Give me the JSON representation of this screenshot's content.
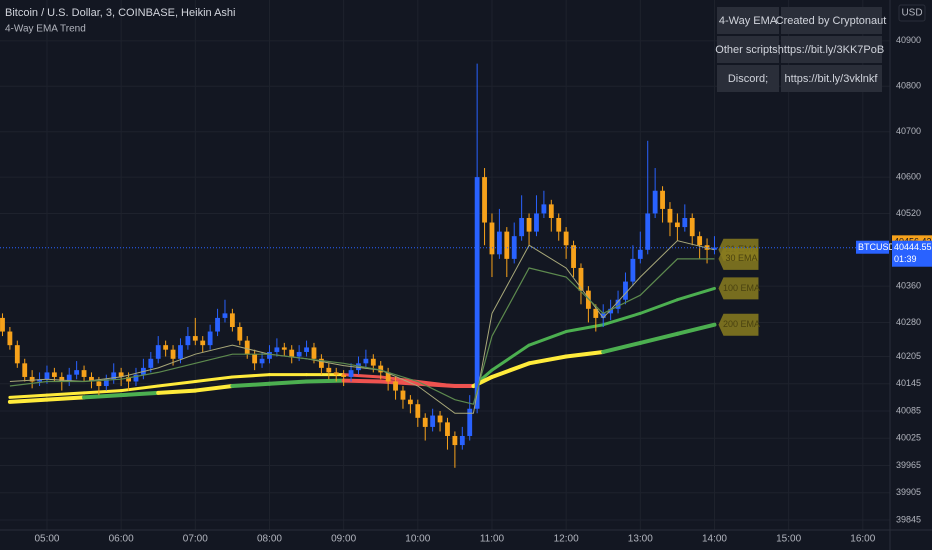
{
  "header": {
    "symbol": "Bitcoin / U.S. Dollar, 3, COINBASE, Heikin Ashi",
    "indicator": "4-Way EMA Trend",
    "currency": "USD"
  },
  "table": {
    "rows": [
      [
        "4-Way EMA",
        "Created by Cryptonaut"
      ],
      [
        "Other scripts;",
        "https://bit.ly/3KK7PoB"
      ],
      [
        "Discord;",
        "https://bit.ly/3vklnkf"
      ]
    ]
  },
  "price_labels": {
    "indicator_price": 40456.42,
    "ticker": "BTCUSD",
    "last_price": 40444.55,
    "countdown": "01:39"
  },
  "chart_data": {
    "type": "candlestick",
    "up_color": "#2962ff",
    "down_color": "#f7a21b",
    "xlim": [
      "04:22",
      "16:22"
    ],
    "ylim": [
      39823,
      40990
    ],
    "xticks": [
      "05:00",
      "06:00",
      "07:00",
      "08:00",
      "09:00",
      "10:00",
      "11:00",
      "12:00",
      "13:00",
      "14:00",
      "15:00",
      "16:00"
    ],
    "yticks": [
      39845,
      39905,
      39965,
      40025,
      40085,
      40145,
      40205,
      40280,
      40360,
      40520,
      40600,
      40700,
      40800,
      40900
    ],
    "grid": true,
    "x": [
      "04:24",
      "04:30",
      "04:36",
      "04:42",
      "04:48",
      "04:54",
      "05:00",
      "05:06",
      "05:12",
      "05:18",
      "05:24",
      "05:30",
      "05:36",
      "05:42",
      "05:48",
      "05:54",
      "06:00",
      "06:06",
      "06:12",
      "06:18",
      "06:24",
      "06:30",
      "06:36",
      "06:42",
      "06:48",
      "06:54",
      "07:00",
      "07:06",
      "07:12",
      "07:18",
      "07:24",
      "07:30",
      "07:36",
      "07:42",
      "07:48",
      "07:54",
      "08:00",
      "08:06",
      "08:12",
      "08:18",
      "08:24",
      "08:30",
      "08:36",
      "08:42",
      "08:48",
      "08:54",
      "09:00",
      "09:06",
      "09:12",
      "09:18",
      "09:24",
      "09:30",
      "09:36",
      "09:42",
      "09:48",
      "09:54",
      "10:00",
      "10:06",
      "10:12",
      "10:18",
      "10:24",
      "10:30",
      "10:36",
      "10:42",
      "10:48",
      "10:54",
      "11:00",
      "11:06",
      "11:12",
      "11:18",
      "11:24",
      "11:30",
      "11:36",
      "11:42",
      "11:48",
      "11:54",
      "12:00",
      "12:06",
      "12:12",
      "12:18",
      "12:24",
      "12:30",
      "12:36",
      "12:42",
      "12:48",
      "12:54",
      "13:00",
      "13:06",
      "13:12",
      "13:18",
      "13:24",
      "13:30",
      "13:36",
      "13:42",
      "13:48",
      "13:54",
      "14:00"
    ],
    "ohlc": [
      [
        40290,
        40300,
        40250,
        40260
      ],
      [
        40260,
        40270,
        40220,
        40230
      ],
      [
        40230,
        40240,
        40180,
        40190
      ],
      [
        40190,
        40200,
        40150,
        40160
      ],
      [
        40160,
        40175,
        40135,
        40150
      ],
      [
        40150,
        40170,
        40140,
        40155
      ],
      [
        40155,
        40185,
        40145,
        40170
      ],
      [
        40170,
        40180,
        40150,
        40160
      ],
      [
        40160,
        40170,
        40130,
        40150
      ],
      [
        40150,
        40180,
        40140,
        40165
      ],
      [
        40165,
        40195,
        40155,
        40175
      ],
      [
        40175,
        40185,
        40150,
        40160
      ],
      [
        40160,
        40170,
        40135,
        40150
      ],
      [
        40150,
        40160,
        40120,
        40140
      ],
      [
        40140,
        40165,
        40130,
        40155
      ],
      [
        40155,
        40190,
        40145,
        40170
      ],
      [
        40170,
        40180,
        40140,
        40160
      ],
      [
        40160,
        40170,
        40130,
        40150
      ],
      [
        40150,
        40180,
        40140,
        40165
      ],
      [
        40165,
        40200,
        40155,
        40180
      ],
      [
        40180,
        40215,
        40170,
        40200
      ],
      [
        40200,
        40250,
        40190,
        40230
      ],
      [
        40230,
        40240,
        40205,
        40220
      ],
      [
        40220,
        40230,
        40185,
        40200
      ],
      [
        40200,
        40245,
        40190,
        40230
      ],
      [
        40230,
        40270,
        40220,
        40250
      ],
      [
        40250,
        40290,
        40230,
        40240
      ],
      [
        40240,
        40250,
        40215,
        40230
      ],
      [
        40230,
        40275,
        40220,
        40260
      ],
      [
        40260,
        40310,
        40250,
        40290
      ],
      [
        40290,
        40330,
        40280,
        40300
      ],
      [
        40300,
        40310,
        40260,
        40270
      ],
      [
        40270,
        40280,
        40230,
        40240
      ],
      [
        40240,
        40250,
        40200,
        40210
      ],
      [
        40210,
        40220,
        40175,
        40190
      ],
      [
        40190,
        40215,
        40180,
        40200
      ],
      [
        40200,
        40230,
        40190,
        40215
      ],
      [
        40215,
        40245,
        40205,
        40225
      ],
      [
        40225,
        40235,
        40205,
        40220
      ],
      [
        40220,
        40230,
        40190,
        40205
      ],
      [
        40205,
        40230,
        40195,
        40215
      ],
      [
        40215,
        40240,
        40205,
        40225
      ],
      [
        40225,
        40235,
        40190,
        40200
      ],
      [
        40200,
        40210,
        40165,
        40180
      ],
      [
        40180,
        40190,
        40155,
        40170
      ],
      [
        40170,
        40180,
        40150,
        40165
      ],
      [
        40165,
        40175,
        40140,
        40160
      ],
      [
        40160,
        40190,
        40150,
        40175
      ],
      [
        40175,
        40205,
        40165,
        40190
      ],
      [
        40190,
        40220,
        40180,
        40200
      ],
      [
        40200,
        40210,
        40170,
        40185
      ],
      [
        40185,
        40195,
        40155,
        40170
      ],
      [
        40170,
        40180,
        40130,
        40150
      ],
      [
        40150,
        40160,
        40110,
        40130
      ],
      [
        40130,
        40140,
        40090,
        40110
      ],
      [
        40110,
        40120,
        40080,
        40100
      ],
      [
        40100,
        40110,
        40050,
        40070
      ],
      [
        40070,
        40080,
        40020,
        40050
      ],
      [
        40050,
        40090,
        40040,
        40075
      ],
      [
        40075,
        40085,
        40040,
        40060
      ],
      [
        40060,
        40070,
        40000,
        40030
      ],
      [
        40030,
        40040,
        39960,
        40010
      ],
      [
        40010,
        40050,
        40000,
        40030
      ],
      [
        40030,
        40120,
        40020,
        40090
      ],
      [
        40090,
        40850,
        40080,
        40600
      ],
      [
        40600,
        40620,
        40450,
        40500
      ],
      [
        40500,
        40520,
        40380,
        40430
      ],
      [
        40430,
        40530,
        40420,
        40480
      ],
      [
        40480,
        40490,
        40380,
        40420
      ],
      [
        40420,
        40500,
        40410,
        40470
      ],
      [
        40470,
        40560,
        40460,
        40510
      ],
      [
        40510,
        40520,
        40450,
        40480
      ],
      [
        40480,
        40560,
        40470,
        40520
      ],
      [
        40520,
        40570,
        40510,
        40540
      ],
      [
        40540,
        40550,
        40480,
        40510
      ],
      [
        40510,
        40520,
        40460,
        40480
      ],
      [
        40480,
        40490,
        40420,
        40450
      ],
      [
        40450,
        40460,
        40380,
        40400
      ],
      [
        40400,
        40410,
        40320,
        40350
      ],
      [
        40350,
        40360,
        40280,
        40310
      ],
      [
        40310,
        40320,
        40260,
        40290
      ],
      [
        40290,
        40320,
        40270,
        40300
      ],
      [
        40300,
        40330,
        40285,
        40310
      ],
      [
        40310,
        40350,
        40300,
        40330
      ],
      [
        40330,
        40390,
        40320,
        40370
      ],
      [
        40370,
        40450,
        40360,
        40420
      ],
      [
        40420,
        40480,
        40410,
        40440
      ],
      [
        40440,
        40680,
        40430,
        40520
      ],
      [
        40520,
        40620,
        40510,
        40570
      ],
      [
        40570,
        40580,
        40500,
        40530
      ],
      [
        40530,
        40545,
        40470,
        40500
      ],
      [
        40500,
        40520,
        40460,
        40490
      ],
      [
        40490,
        40540,
        40480,
        40510
      ],
      [
        40510,
        40520,
        40450,
        40470
      ],
      [
        40470,
        40480,
        40420,
        40450
      ],
      [
        40450,
        40465,
        40410,
        40440
      ],
      [
        40440,
        40470,
        40430,
        40445
      ]
    ],
    "series": [
      {
        "name": "21 EMA",
        "color": "#a9a97a",
        "width": 1,
        "x": [
          "04:30",
          "05:00",
          "05:30",
          "06:00",
          "06:30",
          "07:00",
          "07:30",
          "08:00",
          "08:30",
          "09:00",
          "09:30",
          "10:00",
          "10:30",
          "10:45",
          "11:00",
          "11:30",
          "12:00",
          "12:30",
          "13:00",
          "13:30",
          "14:00"
        ],
        "values": [
          40150,
          40155,
          40150,
          40160,
          40180,
          40210,
          40230,
          40210,
          40200,
          40185,
          40175,
          40140,
          40080,
          40080,
          40300,
          40450,
          40400,
          40290,
          40380,
          40460,
          40440
        ]
      },
      {
        "name": "30 EMA",
        "color": "#5d8a4e",
        "width": 1.2,
        "x": [
          "04:30",
          "05:00",
          "05:30",
          "06:00",
          "06:30",
          "07:00",
          "07:30",
          "08:00",
          "08:30",
          "09:00",
          "09:30",
          "10:00",
          "10:30",
          "10:45",
          "11:00",
          "11:30",
          "12:00",
          "12:30",
          "13:00",
          "13:30",
          "14:00"
        ],
        "values": [
          40140,
          40150,
          40150,
          40155,
          40170,
          40190,
          40210,
          40210,
          40200,
          40190,
          40175,
          40150,
          40110,
          40100,
          40250,
          40400,
          40380,
          40300,
          40340,
          40420,
          40420
        ]
      },
      {
        "name": "100 EMA",
        "width": 3,
        "x": [
          "04:30",
          "05:00",
          "05:30",
          "06:00",
          "06:30",
          "07:00",
          "07:30",
          "08:00",
          "08:30",
          "09:00",
          "09:30",
          "10:00",
          "10:30",
          "10:45",
          "11:00",
          "11:30",
          "12:00",
          "12:30",
          "13:00",
          "13:30",
          "14:00"
        ],
        "values": [
          40115,
          40120,
          40125,
          40130,
          40140,
          40150,
          40160,
          40165,
          40165,
          40165,
          40160,
          40150,
          40140,
          40140,
          40175,
          40230,
          40260,
          40275,
          40300,
          40330,
          40355
        ],
        "colors": [
          "#ffeb3b",
          "#ffeb3b",
          "#ffeb3b",
          "#ffeb3b",
          "#ffeb3b",
          "#ffeb3b",
          "#ffeb3b",
          "#ffeb3b",
          "#ffeb3b",
          "#ef5350",
          "#ef5350",
          "#ef5350",
          "#ef5350",
          "#4caf50",
          "#4caf50",
          "#4caf50",
          "#4caf50",
          "#4caf50",
          "#4caf50",
          "#4caf50",
          "#4caf50"
        ]
      },
      {
        "name": "200 EMA",
        "width": 4,
        "x": [
          "04:30",
          "05:00",
          "05:30",
          "06:00",
          "06:30",
          "07:00",
          "07:30",
          "08:00",
          "08:30",
          "09:00",
          "09:30",
          "10:00",
          "10:30",
          "10:45",
          "11:00",
          "11:30",
          "12:00",
          "12:30",
          "13:00",
          "13:30",
          "14:00"
        ],
        "values": [
          40105,
          40110,
          40115,
          40120,
          40125,
          40130,
          40140,
          40145,
          40150,
          40152,
          40150,
          40145,
          40140,
          40140,
          40160,
          40190,
          40205,
          40215,
          40235,
          40255,
          40275
        ],
        "colors": [
          "#ffeb3b",
          "#ffeb3b",
          "#4caf50",
          "#4caf50",
          "#ffeb3b",
          "#ffeb3b",
          "#4caf50",
          "#4caf50",
          "#4caf50",
          "#ef5350",
          "#ef5350",
          "#ef5350",
          "#ef5350",
          "#ffeb3b",
          "#ffeb3b",
          "#ffeb3b",
          "#ffeb3b",
          "#4caf50",
          "#4caf50",
          "#4caf50",
          "#4caf50"
        ]
      }
    ]
  }
}
